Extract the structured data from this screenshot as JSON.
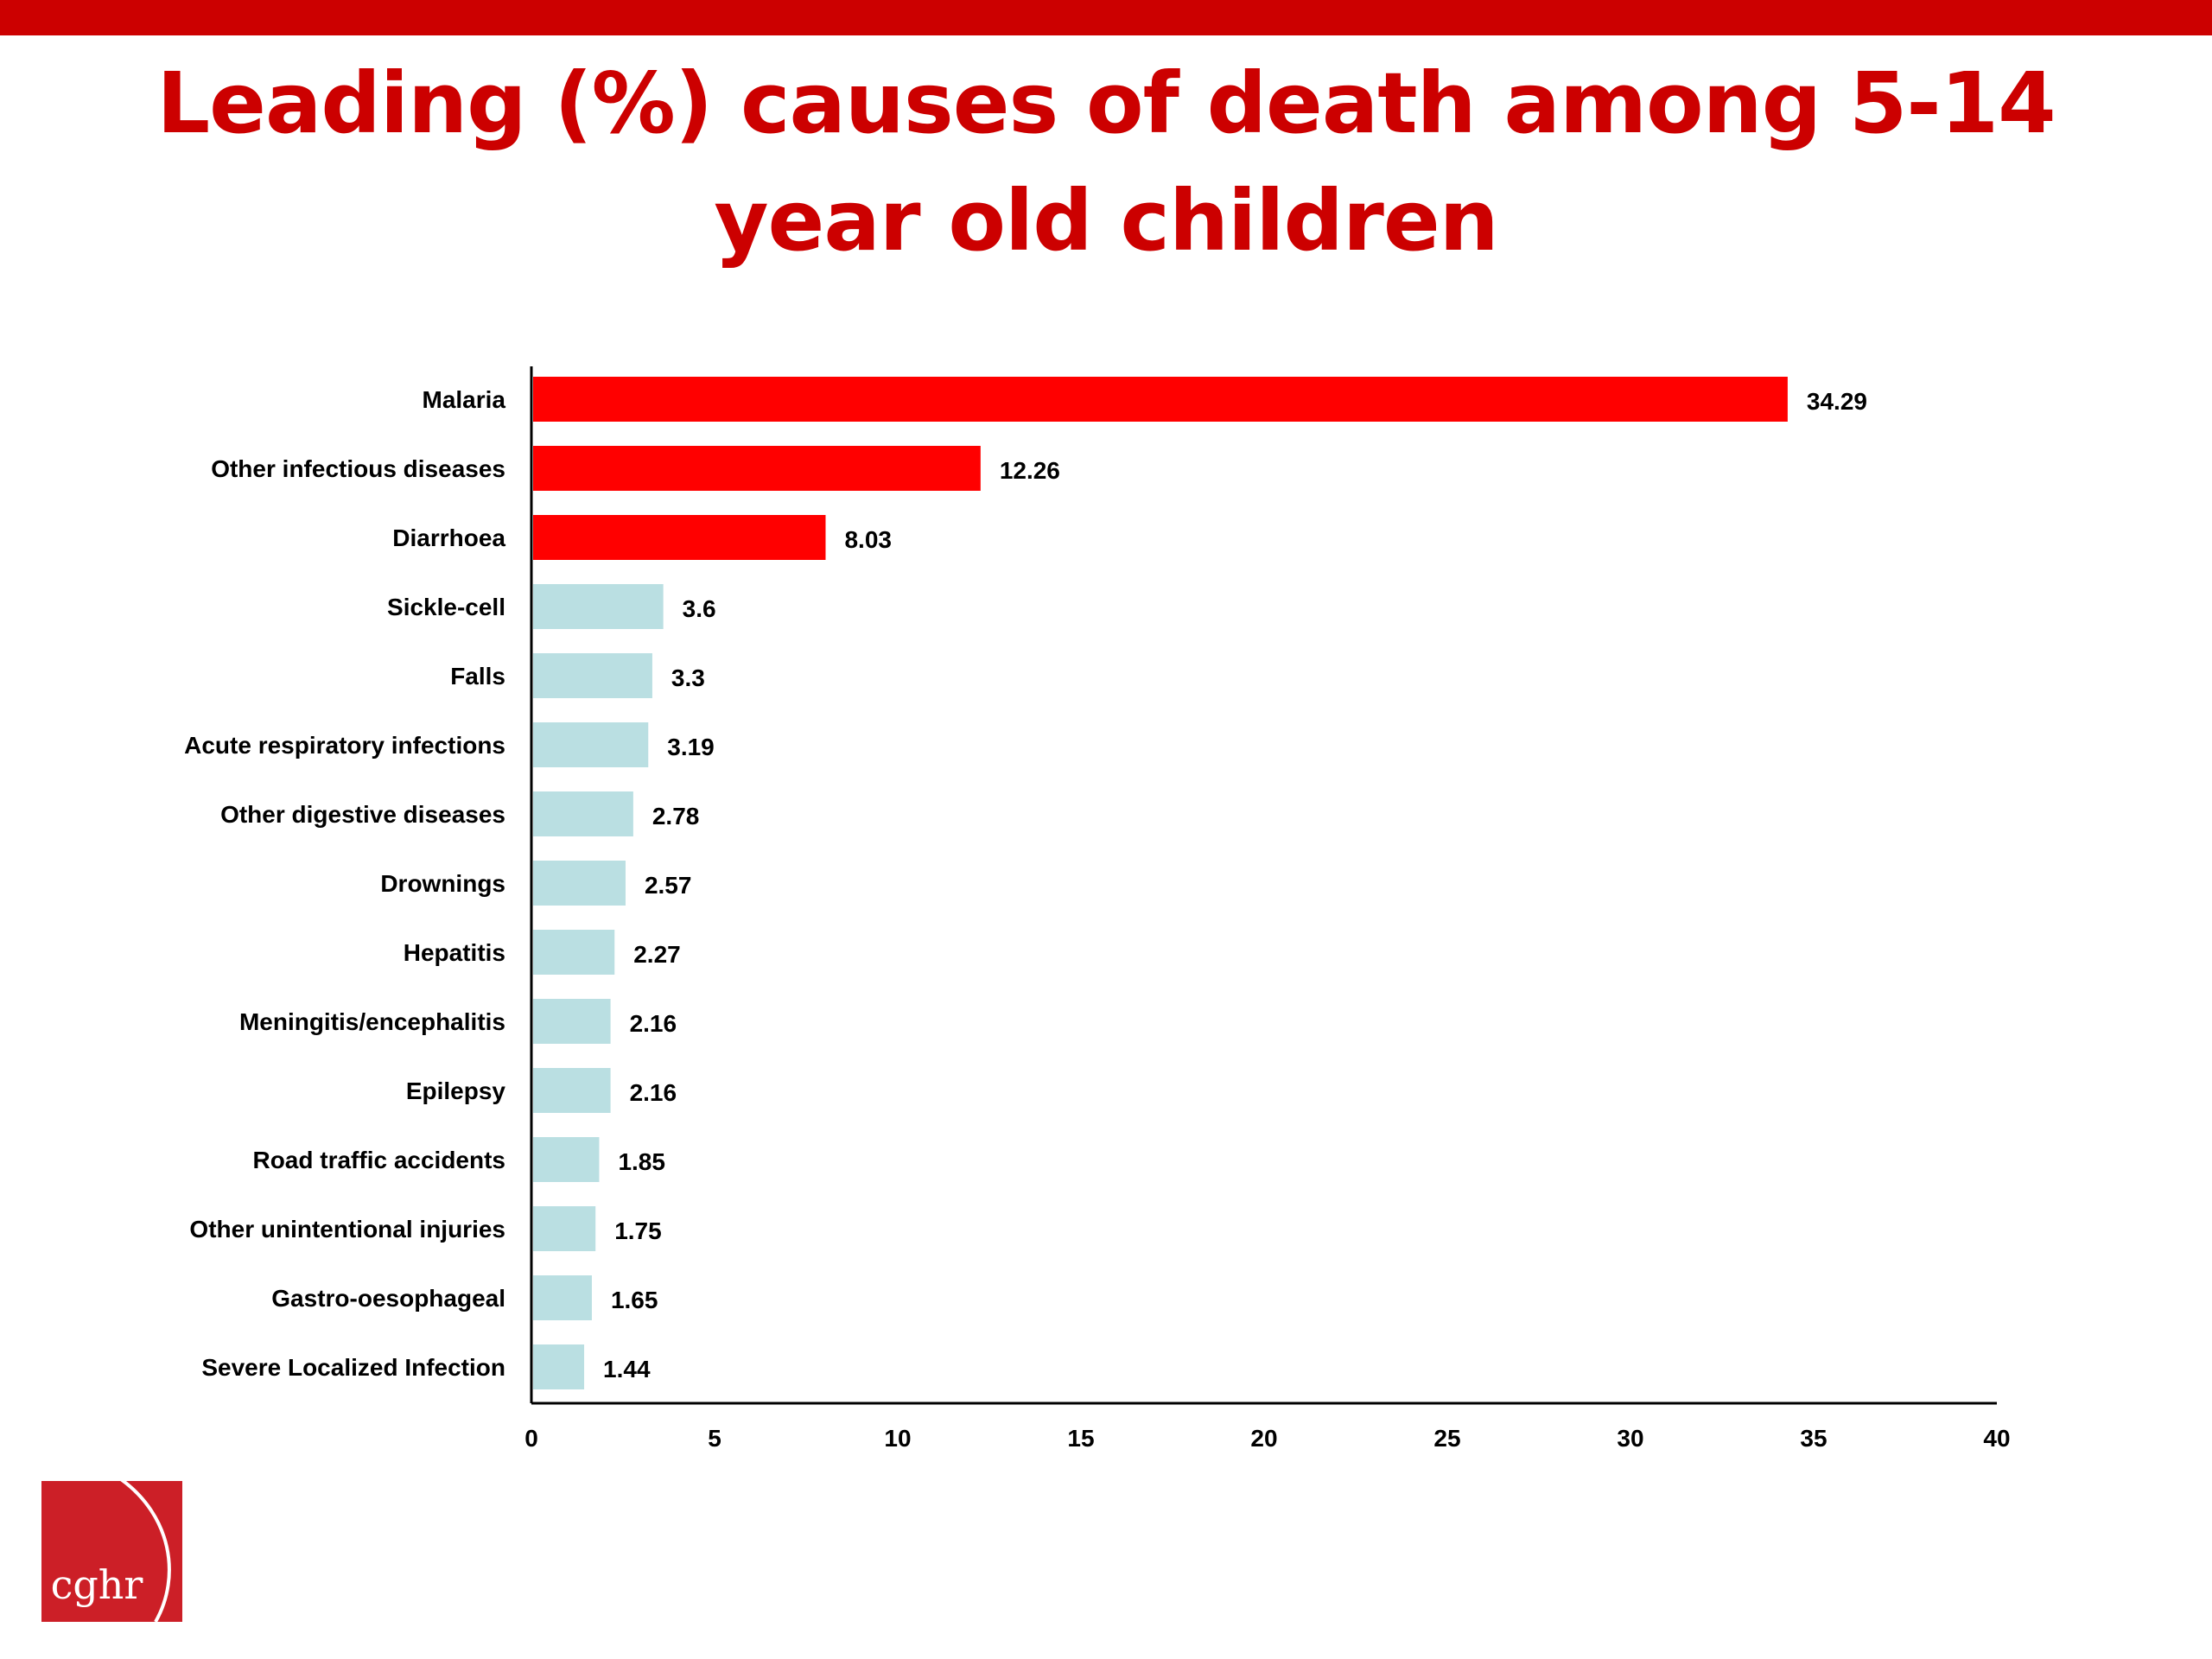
{
  "page": {
    "title": "Leading (%) causes of death among 5-14 year old children",
    "accent_color": "#cc0000",
    "logo_text": "cghr"
  },
  "chart_data": {
    "type": "bar",
    "orientation": "horizontal",
    "title": "Leading (%) causes of death among 5-14 year old children",
    "xlabel": "",
    "ylabel": "",
    "xlim": [
      0,
      40
    ],
    "x_ticks": [
      0,
      5,
      10,
      15,
      20,
      25,
      30,
      35,
      40
    ],
    "grid": false,
    "legend": "none",
    "categories": [
      "Malaria",
      "Other infectious diseases",
      "Diarrhoea",
      "Sickle-cell",
      "Falls",
      "Acute respiratory infections",
      "Other digestive diseases",
      "Drownings",
      "Hepatitis",
      "Meningitis/encephalitis",
      "Epilepsy",
      "Road traffic accidents",
      "Other unintentional injuries",
      "Gastro-oesophageal",
      "Severe Localized Infection"
    ],
    "values": [
      34.29,
      12.26,
      8.03,
      3.6,
      3.3,
      3.19,
      2.78,
      2.57,
      2.27,
      2.16,
      2.16,
      1.85,
      1.75,
      1.65,
      1.44
    ],
    "value_labels": [
      "34.29",
      "12.26",
      "8.03",
      "3.6",
      "3.3",
      "3.19",
      "2.78",
      "2.57",
      "2.27",
      "2.16",
      "2.16",
      "1.85",
      "1.75",
      "1.65",
      "1.44"
    ],
    "highlight_count": 3,
    "colors": {
      "highlight": "#ff0000",
      "default": "#badfe2",
      "axis": "#000000",
      "text": "#000000"
    }
  }
}
